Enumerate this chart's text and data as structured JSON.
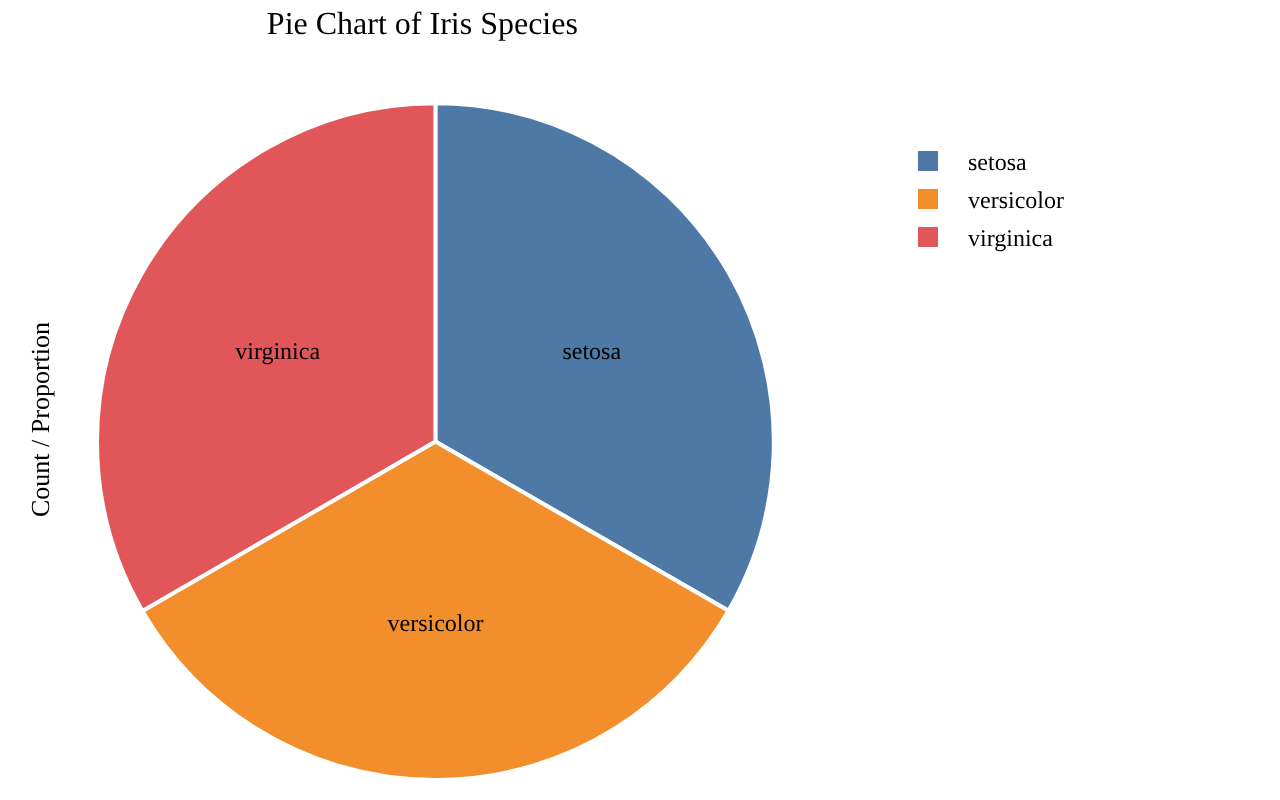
{
  "chart_data": {
    "type": "pie",
    "title": "Pie Chart of Iris Species",
    "ylabel": "Count / Proportion",
    "categories": [
      "setosa",
      "versicolor",
      "virginica"
    ],
    "values": [
      33.33,
      33.33,
      33.34
    ],
    "colors": [
      "#4e79a7",
      "#f28e2b",
      "#e15759"
    ],
    "legend": "top right"
  }
}
